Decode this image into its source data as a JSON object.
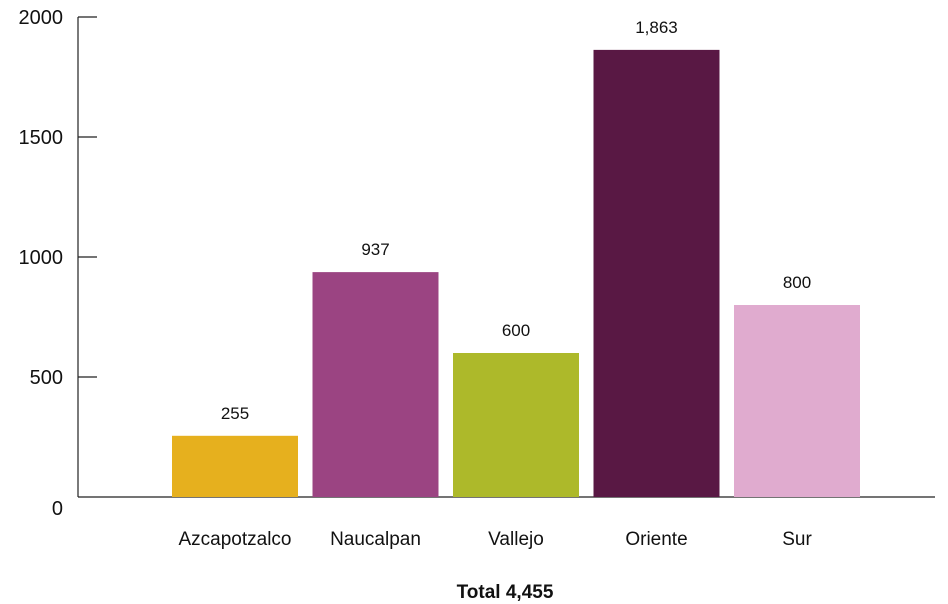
{
  "chart_data": {
    "type": "bar",
    "categories": [
      "Azcapotzalco",
      "Naucalpan",
      "Vallejo",
      "Oriente",
      "Sur"
    ],
    "values": [
      255,
      937,
      600,
      1863,
      800
    ],
    "value_labels": [
      "255",
      "937",
      "600",
      "1,863",
      "800"
    ],
    "colors": [
      "#e6b01e",
      "#9b4482",
      "#adb92a",
      "#591844",
      "#e0abcf"
    ],
    "yticks": [
      "0",
      "500",
      "1000",
      "1500",
      "2000"
    ],
    "ylim": [
      0,
      2000
    ],
    "total_label": "Total 4,455",
    "grid": false
  }
}
